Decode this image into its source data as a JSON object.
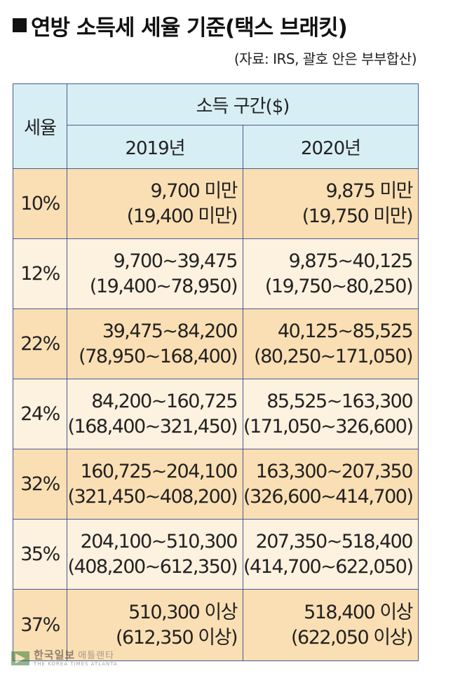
{
  "title": {
    "marker": "■",
    "text": "연방 소득세 세율 기준(택스 브래킷)"
  },
  "source": "(자료: IRS, 괄호 안은 부부합산)",
  "table": {
    "rate_header": "세율",
    "income_header": "소득 구간($)",
    "years": [
      "2019년",
      "2020년"
    ],
    "rows": [
      {
        "rate": "10%",
        "y2019": [
          "9,700 미만",
          "(19,400 미만)"
        ],
        "y2020": [
          "9,875 미만",
          "(19,750 미만)"
        ]
      },
      {
        "rate": "12%",
        "y2019": [
          "9,700~39,475",
          "(19,400~78,950)"
        ],
        "y2020": [
          "9,875~40,125",
          "(19,750~80,250)"
        ]
      },
      {
        "rate": "22%",
        "y2019": [
          "39,475~84,200",
          "(78,950~168,400)"
        ],
        "y2020": [
          "40,125~85,525",
          "(80,250~171,050)"
        ]
      },
      {
        "rate": "24%",
        "y2019": [
          "84,200~160,725",
          "(168,400~321,450)"
        ],
        "y2020": [
          "85,525~163,300",
          "(171,050~326,600)"
        ]
      },
      {
        "rate": "32%",
        "y2019": [
          "160,725~204,100",
          "(321,450~408,200)"
        ],
        "y2020": [
          "163,300~207,350",
          "(326,600~414,700)"
        ]
      },
      {
        "rate": "35%",
        "y2019": [
          "204,100~510,300",
          "(408,200~612,350)"
        ],
        "y2020": [
          "207,350~518,400",
          "(414,700~622,050)"
        ]
      },
      {
        "rate": "37%",
        "y2019": [
          "510,300 이상",
          "(612,350 이상)"
        ],
        "y2020": [
          "518,400 이상",
          "(622,050 이상)"
        ]
      }
    ]
  },
  "watermark": {
    "name": "한국일보",
    "sub": "애틀랜타",
    "eng": "THE KOREA TIMES ATLANTA"
  },
  "colors": {
    "header_bg": "#d7eef5",
    "row_dark": "#fbdfb4",
    "row_light": "#fdf1df",
    "border": "#4a5a8f"
  }
}
